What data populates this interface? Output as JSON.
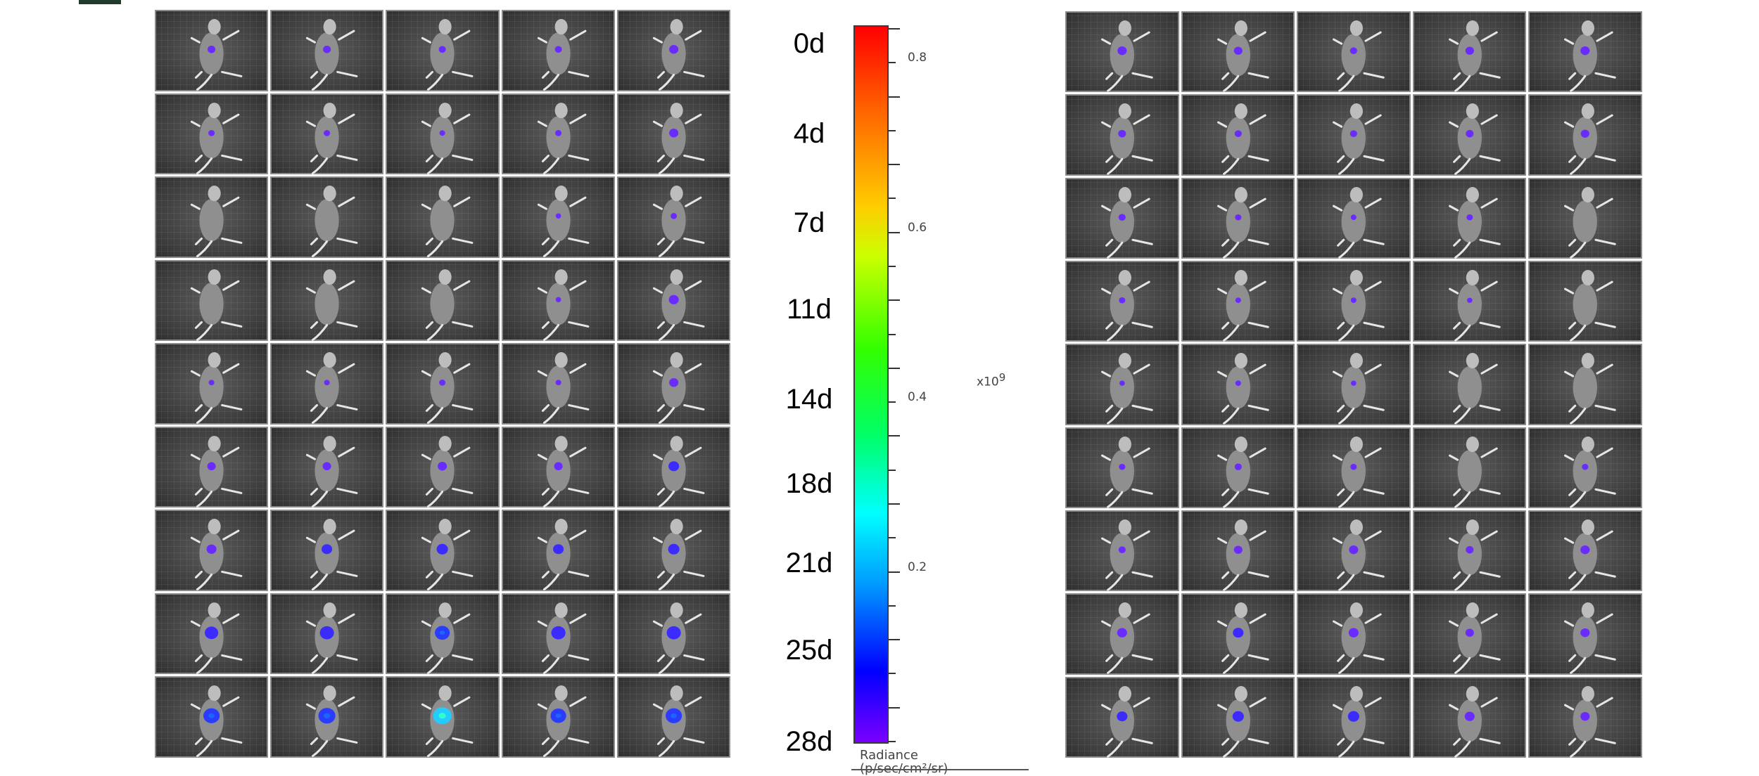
{
  "day_labels": [
    "0d",
    "4d",
    "7d",
    "11d",
    "14d",
    "18d",
    "21d",
    "25d",
    "28d"
  ],
  "colorbar": {
    "ticks": [
      "0.8",
      "0.6",
      "0.4",
      "0.2"
    ],
    "multiplier_base": "x10",
    "multiplier_exp": "9",
    "unit_line1": "Radiance",
    "unit_line2": "(p/sec/cm²/sr)",
    "colors": [
      "#ff0000",
      "#ffcc00",
      "#33ff00",
      "#00ffff",
      "#0000ff",
      "#7a00ff"
    ]
  },
  "panels": {
    "left": {
      "rows": 9,
      "cols": 5,
      "signal_level": [
        [
          0.25,
          0.25,
          0.2,
          0.2,
          0.35
        ],
        [
          0.15,
          0.15,
          0.1,
          0.15,
          0.35
        ],
        [
          0.0,
          0.0,
          0.0,
          0.08,
          0.15
        ],
        [
          0.0,
          0.0,
          0.0,
          0.08,
          0.4
        ],
        [
          0.1,
          0.1,
          0.15,
          0.1,
          0.35
        ],
        [
          0.3,
          0.3,
          0.35,
          0.3,
          0.45
        ],
        [
          0.4,
          0.45,
          0.5,
          0.45,
          0.5
        ],
        [
          0.65,
          0.7,
          0.75,
          0.7,
          0.7
        ],
        [
          0.85,
          0.9,
          1.0,
          0.8,
          0.85
        ]
      ]
    },
    "right": {
      "rows": 9,
      "cols": 5,
      "signal_level": [
        [
          0.35,
          0.3,
          0.2,
          0.3,
          0.35
        ],
        [
          0.25,
          0.2,
          0.2,
          0.25,
          0.3
        ],
        [
          0.2,
          0.15,
          0.1,
          0.15,
          0.0
        ],
        [
          0.15,
          0.1,
          0.1,
          0.08,
          0.0
        ],
        [
          0.08,
          0.1,
          0.08,
          0.0,
          0.0
        ],
        [
          0.15,
          0.2,
          0.15,
          0.0,
          0.15
        ],
        [
          0.2,
          0.3,
          0.35,
          0.25,
          0.35
        ],
        [
          0.4,
          0.45,
          0.4,
          0.3,
          0.35
        ],
        [
          0.45,
          0.5,
          0.5,
          0.4,
          0.35
        ]
      ]
    }
  }
}
